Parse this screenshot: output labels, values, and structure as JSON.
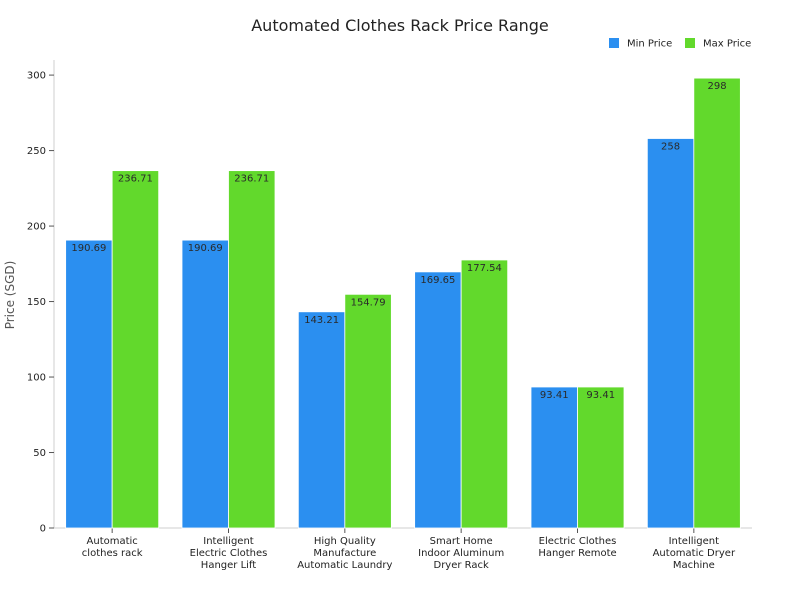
{
  "chart_data": {
    "type": "bar",
    "title": "Automated Clothes Rack Price Range",
    "xlabel": "",
    "ylabel": "Price (SGD)",
    "ylim": [
      0,
      310
    ],
    "yticks": [
      0,
      50,
      100,
      150,
      200,
      250,
      300
    ],
    "grid": false,
    "legend_position": "top-right",
    "categories": [
      [
        "Automatic",
        "clothes rack"
      ],
      [
        "Intelligent",
        "Electric Clothes",
        "Hanger Lift"
      ],
      [
        "High Quality",
        "Manufacture",
        "Automatic Laundry"
      ],
      [
        "Smart Home",
        "Indoor Aluminum",
        "Dryer Rack"
      ],
      [
        "Electric Clothes",
        "Hanger Remote"
      ],
      [
        "Intelligent",
        "Automatic Dryer",
        "Machine"
      ]
    ],
    "series": [
      {
        "name": "Min Price",
        "color": "#2b8ff0",
        "values": [
          190.69,
          190.69,
          143.21,
          169.65,
          93.41,
          258
        ],
        "labels": [
          "190.69",
          "190.69",
          "143.21",
          "169.65",
          "93.41",
          "258"
        ]
      },
      {
        "name": "Max Price",
        "color": "#62d92c",
        "values": [
          236.71,
          236.71,
          154.79,
          177.54,
          93.41,
          298
        ],
        "labels": [
          "236.71",
          "236.71",
          "154.79",
          "177.54",
          "93.41",
          "298"
        ]
      }
    ]
  }
}
